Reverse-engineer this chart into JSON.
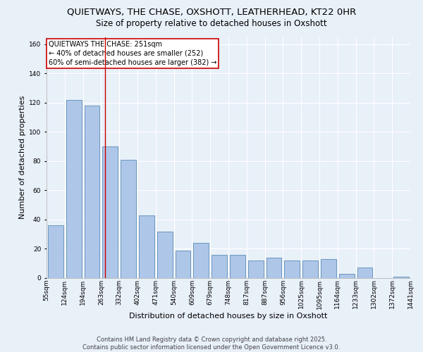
{
  "title_line1": "QUIETWAYS, THE CHASE, OXSHOTT, LEATHERHEAD, KT22 0HR",
  "title_line2": "Size of property relative to detached houses in Oxshott",
  "xlabel": "Distribution of detached houses by size in Oxshott",
  "ylabel": "Number of detached properties",
  "bar_values": [
    36,
    122,
    118,
    90,
    81,
    43,
    32,
    19,
    24,
    16,
    16,
    12,
    14,
    12,
    12,
    13,
    3,
    7,
    0,
    1
  ],
  "bar_labels": [
    "55sqm",
    "124sqm",
    "194sqm",
    "263sqm",
    "332sqm",
    "402sqm",
    "471sqm",
    "540sqm",
    "609sqm",
    "679sqm",
    "748sqm",
    "817sqm",
    "887sqm",
    "956sqm",
    "1025sqm",
    "1095sqm",
    "1164sqm",
    "1233sqm",
    "1302sqm",
    "1372sqm",
    "1441sqm"
  ],
  "bar_color": "#aec6e8",
  "bar_edge_color": "#5b8db8",
  "annotation_box_text": "QUIETWAYS THE CHASE: 251sqm\n← 40% of detached houses are smaller (252)\n60% of semi-detached houses are larger (382) →",
  "vline_x": 2.72,
  "vline_color": "#cc0000",
  "annotation_box_color": "#ffffff",
  "annotation_box_edge_color": "#cc0000",
  "ylim": [
    0,
    165
  ],
  "yticks": [
    0,
    20,
    40,
    60,
    80,
    100,
    120,
    140,
    160
  ],
  "background_color": "#e8f0f8",
  "footer_text": "Contains HM Land Registry data © Crown copyright and database right 2025.\nContains public sector information licensed under the Open Government Licence v3.0.",
  "title_fontsize": 9.5,
  "subtitle_fontsize": 8.5,
  "xlabel_fontsize": 8,
  "ylabel_fontsize": 8,
  "tick_fontsize": 6.5,
  "annotation_fontsize": 7,
  "footer_fontsize": 6
}
